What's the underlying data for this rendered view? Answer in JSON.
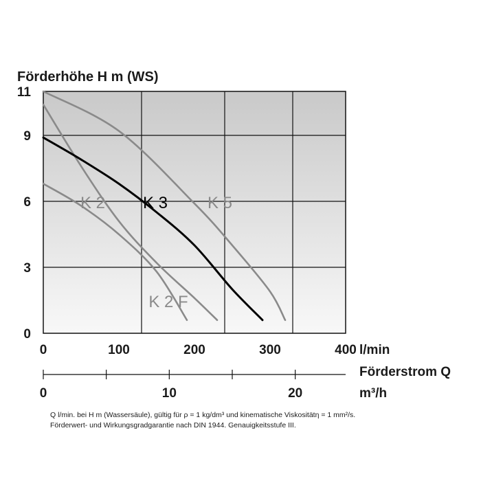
{
  "chart_data": {
    "type": "line",
    "ylabel": "Förderhöhe H m (WS)",
    "xlabel_top_unit": "l/min",
    "xlabel_bottom": "Förderstrom Q",
    "xlabel_bottom_unit": "m³/h",
    "xlim": [
      0,
      400
    ],
    "ylim": [
      0,
      11
    ],
    "x_ticks": [
      "0",
      "100",
      "200",
      "300",
      "400"
    ],
    "y_ticks": [
      "0",
      "3",
      "6",
      "9",
      "11"
    ],
    "m3h_ticks": [
      "0",
      "10",
      "20"
    ],
    "grid": true,
    "series": [
      {
        "name": "K 2",
        "color": "#8a8a8a",
        "x": [
          0,
          50,
          100,
          150,
          200,
          230
        ],
        "y": [
          10.4,
          7.6,
          5.1,
          3.2,
          1.6,
          0.6
        ]
      },
      {
        "name": "K 2 F",
        "color": "#8a8a8a",
        "x": [
          0,
          50,
          100,
          150,
          190
        ],
        "y": [
          6.8,
          5.8,
          4.5,
          2.8,
          0.6
        ]
      },
      {
        "name": "K 3",
        "color": "#000000",
        "x": [
          0,
          50,
          100,
          150,
          200,
          250,
          290
        ],
        "y": [
          8.9,
          7.9,
          6.8,
          5.5,
          4.0,
          2.0,
          0.6
        ]
      },
      {
        "name": "K 5",
        "color": "#8a8a8a",
        "x": [
          0,
          100,
          200,
          250,
          300,
          320
        ],
        "y": [
          11.0,
          9.2,
          5.9,
          4.0,
          1.9,
          0.6
        ]
      }
    ]
  },
  "notes": {
    "line1": "Q l/min. bei H m (Wassersäule), gültig für ρ = 1 kg/dm³ und kinematische Viskositätη = 1 mm²/s.",
    "line2": "Förderwert- und Wirkungsgradgarantie nach DIN 1944. Genauigkeitsstufe III."
  }
}
